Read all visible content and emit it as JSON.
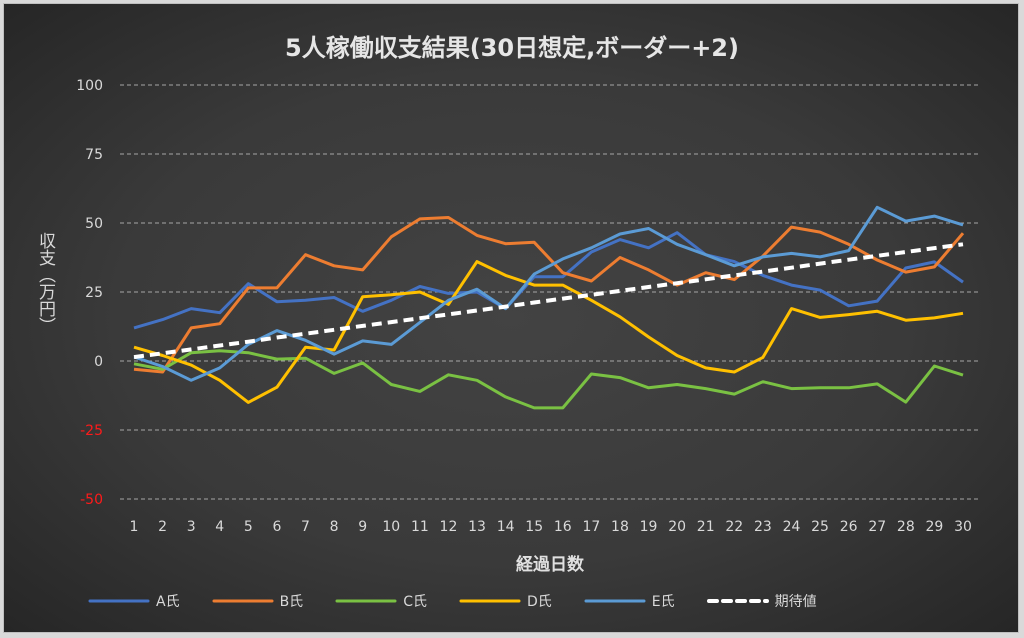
{
  "chart_data": {
    "type": "line",
    "title": "5人稼働収支結果(30日想定,ボーダー+2)",
    "xlabel": "経過日数",
    "ylabel": "収支（万円）",
    "ylim": [
      -50,
      100
    ],
    "yticks": [
      100,
      75,
      50,
      25,
      0,
      -25,
      -50
    ],
    "grid": "horizontal-dashed",
    "legend": "bottom",
    "x": [
      1,
      2,
      3,
      4,
      5,
      6,
      7,
      8,
      9,
      10,
      11,
      12,
      13,
      14,
      15,
      16,
      17,
      18,
      19,
      20,
      21,
      22,
      23,
      24,
      25,
      26,
      27,
      28,
      29,
      30
    ],
    "series": [
      {
        "name": "A氏",
        "color": "#4472c4",
        "dashed": false,
        "values": [
          12,
          15,
          19,
          17.5,
          28,
          21.5,
          22,
          23,
          18,
          22,
          27,
          24.5,
          25,
          19,
          30.5,
          30.5,
          39.5,
          44,
          41,
          46.5,
          38.5,
          36,
          31,
          27.5,
          25.7,
          20,
          21.7,
          33.7,
          35.9,
          28.6
        ]
      },
      {
        "name": "B氏",
        "color": "#ed7d31",
        "dashed": false,
        "values": [
          -3,
          -4,
          12,
          13.5,
          26.5,
          26.5,
          38.5,
          34.5,
          33,
          45,
          51.5,
          52,
          45.5,
          42.5,
          43,
          32,
          29,
          37.5,
          33,
          27.5,
          32,
          29.5,
          38,
          48.5,
          46.7,
          42.3,
          36.6,
          32.2,
          34.1,
          46.3
        ]
      },
      {
        "name": "C氏",
        "color": "#7ac143",
        "dashed": false,
        "values": [
          -1,
          -3,
          3,
          3.7,
          3,
          0.7,
          1,
          -4.5,
          -0.7,
          -8.5,
          -11,
          -5,
          -7,
          -13,
          -17,
          -17,
          -4.7,
          -6,
          -9.7,
          -8.5,
          -10,
          -12,
          -7.5,
          -10,
          -9.7,
          -9.7,
          -8.3,
          -14.9,
          -1.8,
          -5.1
        ]
      },
      {
        "name": "D氏",
        "color": "#ffc000",
        "dashed": false,
        "values": [
          5,
          2,
          -1.5,
          -7,
          -15,
          -9.5,
          5,
          4,
          23.3,
          24,
          25,
          20.5,
          36,
          31,
          27.5,
          27.5,
          22,
          16,
          8.7,
          2,
          -2.5,
          -4,
          1.3,
          19,
          15.8,
          16.8,
          18,
          14.8,
          15.6,
          17.3
        ]
      },
      {
        "name": "E氏",
        "color": "#5b9bd5",
        "dashed": false,
        "values": [
          1.5,
          -2,
          -7,
          -2.5,
          6,
          11,
          7.5,
          2.5,
          7.3,
          6,
          14,
          22,
          26,
          19,
          31.5,
          37,
          41,
          46,
          48,
          42.3,
          38.5,
          34.5,
          37.7,
          39,
          37.7,
          40,
          55.7,
          50.7,
          52.5,
          49.3
        ]
      },
      {
        "name": "期待値",
        "color": "#ffffff",
        "dashed": true,
        "values": [
          1.4,
          2.8,
          4.2,
          5.6,
          7.0,
          8.5,
          9.9,
          11.3,
          12.7,
          14.1,
          15.5,
          16.9,
          18.3,
          19.7,
          21.2,
          22.6,
          24.0,
          25.4,
          26.8,
          28.2,
          29.6,
          31.0,
          32.4,
          33.8,
          35.3,
          36.7,
          38.1,
          39.5,
          40.9,
          42.3
        ]
      }
    ]
  }
}
